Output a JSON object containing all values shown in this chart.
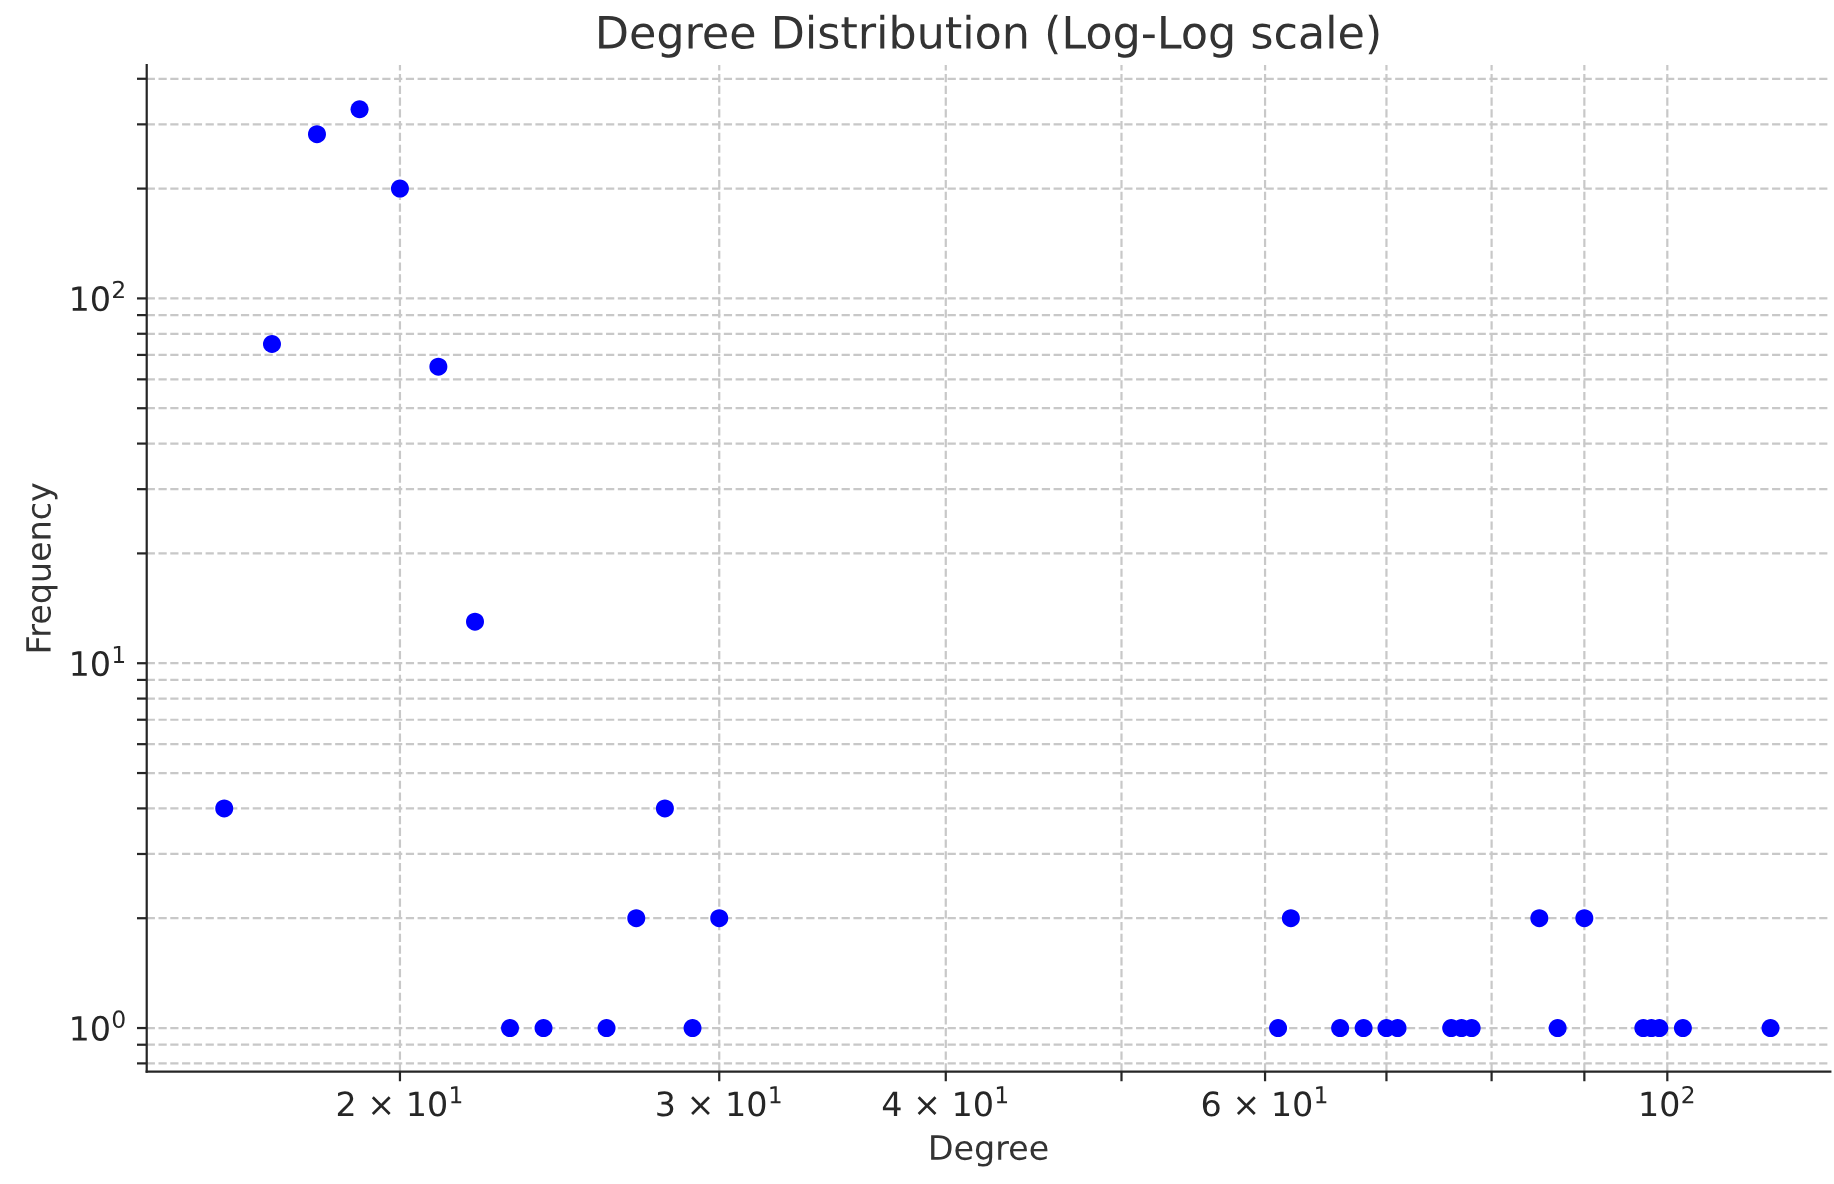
{
  "chart_data": {
    "type": "scatter",
    "title": "Degree Distribution (Log-Log scale)",
    "xlabel": "Degree",
    "ylabel": "Frequency",
    "x": [
      16,
      17,
      18,
      19,
      20,
      21,
      22,
      23,
      24,
      26,
      27,
      28,
      29,
      30,
      61,
      62,
      66,
      68,
      70,
      71,
      76,
      77,
      78,
      85,
      87,
      90,
      97,
      98,
      99,
      102,
      114
    ],
    "series": [
      {
        "color": "#0000ff",
        "values": [
          4,
          75,
          282,
          330,
          200,
          65,
          13,
          1,
          1,
          1,
          2,
          4,
          1,
          2,
          1,
          2,
          1,
          1,
          1,
          1,
          1,
          1,
          1,
          2,
          1,
          2,
          1,
          1,
          1,
          1,
          1
        ]
      }
    ],
    "log": "xy",
    "marker": "circle",
    "grid": true,
    "xlim": [
      14.5,
      123
    ],
    "ylim": [
      0.76,
      436
    ],
    "xticks": [
      {
        "value": 20,
        "label": "2 × 10$^{1}$"
      },
      {
        "value": 30,
        "label": "3 × 10$^{1}$"
      },
      {
        "value": 40,
        "label": "4 × 10$^{1}$"
      },
      {
        "value": 50,
        "label": null
      },
      {
        "value": 60,
        "label": "6 × 10$^{1}$"
      },
      {
        "value": 70,
        "label": null
      },
      {
        "value": 80,
        "label": null
      },
      {
        "value": 90,
        "label": null
      },
      {
        "value": 100,
        "label": "10$^{2}$"
      }
    ],
    "yticks": [
      {
        "value": 0.8,
        "label": null
      },
      {
        "value": 0.9,
        "label": null
      },
      {
        "value": 1,
        "label": "10$^{0}$"
      },
      {
        "value": 2,
        "label": null
      },
      {
        "value": 3,
        "label": null
      },
      {
        "value": 4,
        "label": null
      },
      {
        "value": 5,
        "label": null
      },
      {
        "value": 6,
        "label": null
      },
      {
        "value": 7,
        "label": null
      },
      {
        "value": 8,
        "label": null
      },
      {
        "value": 9,
        "label": null
      },
      {
        "value": 10,
        "label": "10$^{1}$"
      },
      {
        "value": 20,
        "label": null
      },
      {
        "value": 30,
        "label": null
      },
      {
        "value": 40,
        "label": null
      },
      {
        "value": 50,
        "label": null
      },
      {
        "value": 60,
        "label": null
      },
      {
        "value": 70,
        "label": null
      },
      {
        "value": 80,
        "label": null
      },
      {
        "value": 90,
        "label": null
      },
      {
        "value": 100,
        "label": "10$^{2}$"
      },
      {
        "value": 200,
        "label": null
      },
      {
        "value": 300,
        "label": null
      },
      {
        "value": 400,
        "label": null
      }
    ]
  }
}
